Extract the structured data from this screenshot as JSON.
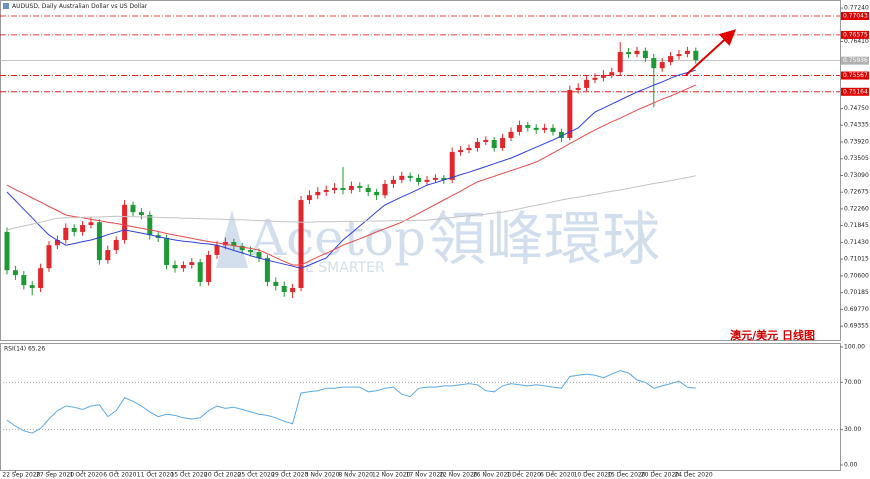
{
  "chart_data": [
    {
      "type": "candlestick",
      "title": "AUDUSD, Daily  Australian Dollar vs US Dollar",
      "up_color": "#e3262b",
      "down_color": "#1d9a33",
      "open": [
        0.7169,
        0.7074,
        0.7062,
        0.7037,
        0.703,
        0.7079,
        0.7136,
        0.7149,
        0.7179,
        0.7169,
        0.7186,
        0.7193,
        0.7099,
        0.7124,
        0.7149,
        0.7236,
        0.7218,
        0.7211,
        0.7161,
        0.7154,
        0.7087,
        0.7079,
        0.7087,
        0.7094,
        0.7045,
        0.7112,
        0.7136,
        0.7144,
        0.7134,
        0.7124,
        0.7119,
        0.7104,
        0.7045,
        0.7035,
        0.702,
        0.703,
        0.7248,
        0.726,
        0.7268,
        0.7273,
        0.7278,
        0.7273,
        0.7283,
        0.7278,
        0.7268,
        0.726,
        0.7288,
        0.7298,
        0.7308,
        0.7303,
        0.7293,
        0.7298,
        0.7303,
        0.7298,
        0.7367,
        0.7372,
        0.7377,
        0.7392,
        0.7397,
        0.7377,
        0.7402,
        0.7417,
        0.7434,
        0.7427,
        0.7422,
        0.7427,
        0.7417,
        0.7402,
        0.7521,
        0.7526,
        0.7546,
        0.7551,
        0.7558,
        0.7565,
        0.7615,
        0.761,
        0.7618,
        0.76,
        0.7575,
        0.759,
        0.7605,
        0.761,
        0.7618
      ],
      "high": [
        0.718,
        0.7085,
        0.7072,
        0.7047,
        0.709,
        0.7146,
        0.716,
        0.719,
        0.7188,
        0.7196,
        0.7205,
        0.72,
        0.7135,
        0.7158,
        0.7248,
        0.7244,
        0.7228,
        0.722,
        0.717,
        0.7162,
        0.7098,
        0.7096,
        0.7104,
        0.7102,
        0.7122,
        0.7146,
        0.7155,
        0.7152,
        0.7142,
        0.7133,
        0.7128,
        0.7112,
        0.7056,
        0.7046,
        0.704,
        0.7258,
        0.7272,
        0.728,
        0.7284,
        0.729,
        0.733,
        0.7294,
        0.7292,
        0.7287,
        0.7276,
        0.7298,
        0.7308,
        0.7318,
        0.7316,
        0.7312,
        0.7308,
        0.7312,
        0.731,
        0.7378,
        0.7382,
        0.7386,
        0.7402,
        0.7406,
        0.7404,
        0.7412,
        0.7428,
        0.7445,
        0.7442,
        0.7436,
        0.7437,
        0.7436,
        0.7425,
        0.7532,
        0.7538,
        0.7556,
        0.7562,
        0.757,
        0.7576,
        0.764,
        0.7625,
        0.7628,
        0.7626,
        0.761,
        0.76,
        0.7615,
        0.762,
        0.7628,
        0.7626
      ],
      "low": [
        0.7064,
        0.705,
        0.7026,
        0.7012,
        0.702,
        0.707,
        0.7126,
        0.714,
        0.7158,
        0.716,
        0.7178,
        0.7088,
        0.709,
        0.7114,
        0.714,
        0.7208,
        0.72,
        0.715,
        0.7144,
        0.7076,
        0.7068,
        0.707,
        0.7078,
        0.7034,
        0.7036,
        0.7102,
        0.7126,
        0.7124,
        0.7114,
        0.7108,
        0.7094,
        0.7034,
        0.7024,
        0.7008,
        0.7005,
        0.7022,
        0.7238,
        0.725,
        0.7258,
        0.7264,
        0.7262,
        0.7264,
        0.7268,
        0.7258,
        0.7248,
        0.7252,
        0.7278,
        0.729,
        0.7294,
        0.7284,
        0.7286,
        0.729,
        0.7288,
        0.729,
        0.7358,
        0.7364,
        0.7368,
        0.7384,
        0.7368,
        0.737,
        0.7394,
        0.7408,
        0.7418,
        0.7412,
        0.7414,
        0.7408,
        0.7392,
        0.7396,
        0.7512,
        0.7518,
        0.7538,
        0.7542,
        0.755,
        0.7556,
        0.76,
        0.7602,
        0.759,
        0.7478,
        0.7566,
        0.7582,
        0.7596,
        0.7602,
        0.7586
      ],
      "close": [
        0.7074,
        0.7062,
        0.7037,
        0.703,
        0.7079,
        0.7136,
        0.7149,
        0.7179,
        0.7169,
        0.7186,
        0.7193,
        0.7099,
        0.7124,
        0.7149,
        0.7236,
        0.7218,
        0.7211,
        0.7161,
        0.7154,
        0.7087,
        0.7079,
        0.7087,
        0.7094,
        0.7045,
        0.7112,
        0.7136,
        0.7144,
        0.7134,
        0.7124,
        0.7119,
        0.7104,
        0.7045,
        0.7035,
        0.702,
        0.703,
        0.7248,
        0.726,
        0.7268,
        0.7273,
        0.7278,
        0.7273,
        0.7283,
        0.7278,
        0.7268,
        0.726,
        0.7288,
        0.7298,
        0.7308,
        0.7303,
        0.7293,
        0.7298,
        0.7303,
        0.7298,
        0.7367,
        0.7372,
        0.7377,
        0.7392,
        0.7397,
        0.7377,
        0.7402,
        0.7417,
        0.7434,
        0.7427,
        0.7422,
        0.7427,
        0.7417,
        0.7402,
        0.7521,
        0.7526,
        0.7546,
        0.7551,
        0.7558,
        0.7565,
        0.7615,
        0.761,
        0.7618,
        0.76,
        0.7575,
        0.759,
        0.7605,
        0.761,
        0.7618,
        0.7595
      ],
      "series": [
        {
          "color": "#2f3fe0",
          "values": [
            0.7268,
            0.7247,
            0.7225,
            0.7204,
            0.7182,
            0.7161,
            0.7148,
            0.7136,
            0.714,
            0.7145,
            0.7149,
            0.7155,
            0.7162,
            0.7168,
            0.7174,
            0.717,
            0.7166,
            0.7162,
            0.7157,
            0.7153,
            0.7149,
            0.7146,
            0.7144,
            0.7141,
            0.7139,
            0.7136,
            0.713,
            0.7123,
            0.7117,
            0.711,
            0.7104,
            0.7099,
            0.7094,
            0.7089,
            0.7084,
            0.7079,
            0.7087,
            0.7096,
            0.7104,
            0.7127,
            0.7149,
            0.7166,
            0.7184,
            0.7201,
            0.7219,
            0.7236,
            0.7246,
            0.7256,
            0.7265,
            0.7275,
            0.7285,
            0.7291,
            0.7298,
            0.7304,
            0.7311,
            0.7317,
            0.7324,
            0.7331,
            0.7338,
            0.7345,
            0.7352,
            0.7361,
            0.737,
            0.7379,
            0.7388,
            0.7397,
            0.7407,
            0.7417,
            0.7427,
            0.7447,
            0.7466,
            0.7476,
            0.7486,
            0.7496,
            0.7506,
            0.7516,
            0.7524,
            0.7533,
            0.7541,
            0.755,
            0.7558,
            0.7564,
            0.757
          ]
        },
        {
          "color": "#e84a4a",
          "values": [
            0.7285,
            0.7274,
            0.7264,
            0.7253,
            0.7243,
            0.7232,
            0.7222,
            0.7211,
            0.7207,
            0.7204,
            0.72,
            0.7197,
            0.7193,
            0.719,
            0.7186,
            0.7182,
            0.7178,
            0.7174,
            0.717,
            0.7165,
            0.7161,
            0.7157,
            0.7153,
            0.7149,
            0.7145,
            0.7142,
            0.7138,
            0.7135,
            0.7131,
            0.7128,
            0.7124,
            0.7115,
            0.7105,
            0.7096,
            0.7087,
            0.7087,
            0.7097,
            0.7107,
            0.7116,
            0.7126,
            0.7136,
            0.7144,
            0.7152,
            0.716,
            0.7169,
            0.7177,
            0.7185,
            0.7193,
            0.7204,
            0.7215,
            0.7226,
            0.7237,
            0.7248,
            0.7259,
            0.727,
            0.7282,
            0.7293,
            0.73,
            0.7307,
            0.7314,
            0.7321,
            0.7328,
            0.7335,
            0.7342,
            0.7353,
            0.7365,
            0.7376,
            0.7388,
            0.7399,
            0.7411,
            0.7422,
            0.7432,
            0.7442,
            0.7451,
            0.7461,
            0.7471,
            0.748,
            0.7489,
            0.7498,
            0.7506,
            0.7515,
            0.7524,
            0.7533
          ]
        },
        {
          "color": "#c4c4c4",
          "values": [
            0.7174,
            0.7179,
            0.7184,
            0.7188,
            0.7193,
            0.7198,
            0.7203,
            0.7204,
            0.7204,
            0.7205,
            0.7206,
            0.7206,
            0.7207,
            0.7208,
            0.7207,
            0.7207,
            0.7206,
            0.7206,
            0.7205,
            0.7204,
            0.7204,
            0.7203,
            0.7203,
            0.7202,
            0.7201,
            0.7201,
            0.72,
            0.7199,
            0.7199,
            0.7198,
            0.7197,
            0.7196,
            0.7195,
            0.7194,
            0.7194,
            0.7193,
            0.7193,
            0.7194,
            0.7194,
            0.7194,
            0.7195,
            0.7195,
            0.7195,
            0.7196,
            0.7196,
            0.7196,
            0.7197,
            0.7197,
            0.7197,
            0.7198,
            0.7198,
            0.72,
            0.7202,
            0.7205,
            0.7207,
            0.7209,
            0.7211,
            0.7213,
            0.7216,
            0.7218,
            0.7222,
            0.7226,
            0.7231,
            0.7235,
            0.7239,
            0.7244,
            0.7248,
            0.7252,
            0.7255,
            0.7259,
            0.7262,
            0.7266,
            0.727,
            0.7273,
            0.7277,
            0.7281,
            0.7285,
            0.7289,
            0.7292,
            0.7296,
            0.73,
            0.7304,
            0.7308
          ]
        }
      ],
      "ylim": [
        0.6901,
        0.7744
      ],
      "yticks": [
        {
          "value": 0.7724,
          "label": "0.77240"
        },
        {
          "value": 0.7641,
          "label": "0.76410"
        },
        {
          "value": 0.7475,
          "label": "0.74750"
        },
        {
          "value": 0.74335,
          "label": "0.74335"
        },
        {
          "value": 0.7392,
          "label": "0.73920"
        },
        {
          "value": 0.73505,
          "label": "0.73505"
        },
        {
          "value": 0.7309,
          "label": "0.73090"
        },
        {
          "value": 0.72675,
          "label": "0.72675"
        },
        {
          "value": 0.7226,
          "label": "0.72260"
        },
        {
          "value": 0.71845,
          "label": "0.71845"
        },
        {
          "value": 0.7143,
          "label": "0.71430"
        },
        {
          "value": 0.71015,
          "label": "0.71015"
        },
        {
          "value": 0.706,
          "label": "0.70600"
        },
        {
          "value": 0.70185,
          "label": "0.70185"
        },
        {
          "value": 0.6977,
          "label": "0.69770"
        },
        {
          "value": 0.69355,
          "label": "0.69355"
        }
      ],
      "hlines": [
        {
          "value": 0.77043,
          "label": "0.77043",
          "color": "#e00000",
          "style": "dashdot"
        },
        {
          "value": 0.76575,
          "label": "0.76575",
          "color": "#e00000",
          "style": "dashdot"
        },
        {
          "value": 0.75936,
          "label": "0.75936",
          "color": "#b0b0b0",
          "style": "solid"
        },
        {
          "value": 0.75567,
          "label": "0.75567",
          "color": "#e00000",
          "style": "dashdot"
        },
        {
          "value": 0.75164,
          "label": "0.75164",
          "color": "#e00000",
          "style": "dashdot"
        }
      ],
      "annotation": "澳元/美元  日线图",
      "watermark": {
        "brand": "Acetop",
        "chinese": "領峰環球",
        "slogan": "E SMARTER"
      }
    },
    {
      "type": "line",
      "title": "RSI(14) 65.26",
      "color": "#5aaae6",
      "categories": [
        null,
        "22 Sep 2020",
        null,
        null,
        null,
        "27 Sep 2020",
        null,
        null,
        null,
        "1 Oct 2020",
        null,
        null,
        null,
        "6 Oct 2020",
        null,
        null,
        null,
        "11 Oct 2020",
        null,
        null,
        null,
        "15 Oct 2020",
        null,
        null,
        null,
        "20 Oct 2020",
        null,
        null,
        null,
        "25 Oct 2020",
        null,
        null,
        null,
        "29 Oct 2020",
        null,
        null,
        null,
        "3 Nov 2020",
        null,
        null,
        null,
        "8 Nov 2020",
        null,
        null,
        null,
        "12 Nov 2020",
        null,
        null,
        null,
        "17 Nov 2020",
        null,
        null,
        null,
        "22 Nov 2020",
        null,
        null,
        null,
        "26 Nov 2020",
        null,
        null,
        null,
        "1 Dec 2020",
        null,
        null,
        null,
        "6 Dec 2020",
        null,
        null,
        null,
        "10 Dec 2020",
        null,
        null,
        null,
        "15 Dec 2020",
        null,
        null,
        null,
        "20 Dec 2020",
        null,
        null,
        null,
        "24 Dec 2020",
        null
      ],
      "values": [
        38,
        33,
        29,
        27,
        31,
        39,
        46,
        50,
        49,
        47,
        50,
        51,
        41,
        46,
        57,
        54,
        50,
        45,
        41,
        43,
        42,
        40,
        39,
        40,
        46,
        50,
        48,
        49,
        47,
        45,
        43,
        42,
        40,
        37,
        35,
        61,
        62,
        63,
        65,
        65,
        66,
        66,
        66,
        62,
        63,
        65,
        66,
        60,
        58,
        65,
        66,
        66,
        67,
        67,
        68,
        69,
        68,
        63,
        62,
        67,
        69,
        68,
        67,
        68,
        67,
        66,
        65,
        75,
        76,
        77,
        76,
        74,
        77,
        80,
        78,
        72,
        70,
        65,
        67,
        69,
        71,
        66,
        65
      ],
      "ylim": [
        0,
        100
      ],
      "yticks": [
        {
          "value": 100,
          "label": "100.00"
        },
        {
          "value": 70,
          "label": "70.00"
        },
        {
          "value": 30,
          "label": "30.00"
        },
        {
          "value": 0,
          "label": "0.00"
        }
      ],
      "levels": [
        70,
        30
      ]
    }
  ]
}
